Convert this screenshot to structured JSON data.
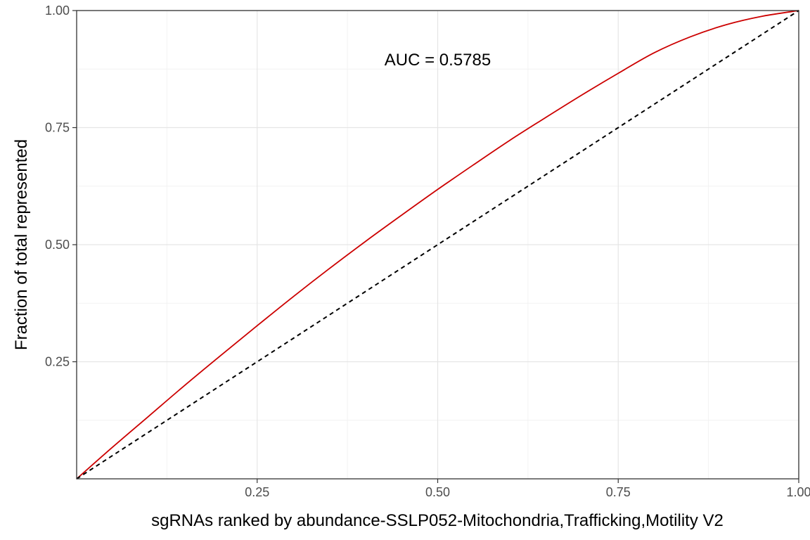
{
  "chart_data": {
    "type": "line",
    "title": "",
    "xlabel": "sgRNAs ranked by abundance-SSLP052-Mitochondria,Trafficking,Motility V2",
    "ylabel": "Fraction of total represented",
    "xlim": [
      0,
      1
    ],
    "ylim": [
      0,
      1
    ],
    "x_ticks": [
      0.25,
      0.5,
      0.75,
      1.0
    ],
    "x_tick_labels": [
      "0.25",
      "0.50",
      "0.75",
      "1.00"
    ],
    "y_ticks": [
      0.25,
      0.5,
      0.75,
      1.0
    ],
    "y_tick_labels": [
      "0.25",
      "0.50",
      "0.75",
      "1.00"
    ],
    "grid": true,
    "annotation": {
      "text": "AUC = 0.5785",
      "x": 0.5,
      "y": 0.895
    },
    "series": [
      {
        "style": "solid",
        "color": "#cc0000",
        "x": [
          0,
          0.05,
          0.1,
          0.15,
          0.2,
          0.25,
          0.3,
          0.35,
          0.4,
          0.45,
          0.5,
          0.55,
          0.6,
          0.65,
          0.7,
          0.75,
          0.8,
          0.85,
          0.9,
          0.95,
          1.0
        ],
        "y": [
          0,
          0.068,
          0.134,
          0.2,
          0.264,
          0.327,
          0.389,
          0.449,
          0.507,
          0.563,
          0.618,
          0.671,
          0.723,
          0.772,
          0.82,
          0.866,
          0.91,
          0.944,
          0.97,
          0.988,
          1.0
        ]
      },
      {
        "style": "dashed",
        "color": "#000000",
        "x": [
          0,
          1
        ],
        "y": [
          0,
          1
        ]
      }
    ]
  }
}
